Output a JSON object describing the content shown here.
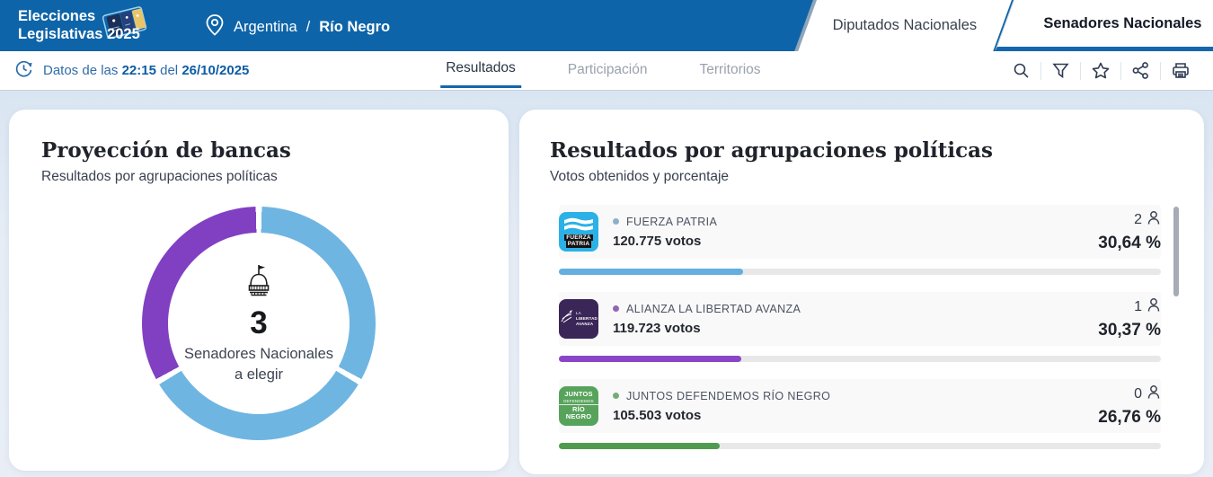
{
  "header": {
    "logo": {
      "line1": "Elecciones",
      "line2": "Legislativas 2025"
    },
    "location": {
      "country": "Argentina",
      "separator": "/",
      "region": "Río Negro"
    },
    "tabs": [
      {
        "label": "Diputados Nacionales",
        "active": false
      },
      {
        "label": "Senadores Nacionales",
        "active": true
      }
    ],
    "brand_color": "#0e64a8",
    "active_tab_underline_color": "#1566ac"
  },
  "subheader": {
    "status": {
      "prefix": "Datos de las",
      "time": "22:15",
      "middle": "del",
      "date": "26/10/2025"
    },
    "tabs": [
      {
        "label": "Resultados",
        "active": true
      },
      {
        "label": "Participación",
        "active": false
      },
      {
        "label": "Territorios",
        "active": false
      }
    ],
    "toolbar_icons": [
      "search-icon",
      "filter-icon",
      "favorite-icon",
      "share-icon",
      "print-icon"
    ]
  },
  "seats_card": {
    "title": "Proyección de bancas",
    "subtitle": "Resultados por agrupaciones políticas",
    "donut": {
      "total_label": "3",
      "caption_line1": "Senadores Nacionales",
      "caption_line2": "a elegir",
      "gap_deg": 3,
      "segments": [
        {
          "party": "FUERZA PATRIA",
          "seats": 2,
          "color": "#6fb5e2"
        },
        {
          "party": "ALIANZA LA LIBERTAD AVANZA",
          "seats": 1,
          "color": "#8140c2"
        }
      ]
    }
  },
  "results_card": {
    "title": "Resultados por agrupaciones políticas",
    "subtitle": "Votos obtenidos y porcentaje",
    "rows": [
      {
        "name": "FUERZA PATRIA",
        "votes": "120.775 votos",
        "seats": "2",
        "percent": "30,64 %",
        "percent_value": 30.64,
        "color": "#63afdf",
        "dot_color": "#7aa3c0",
        "logo": {
          "kind": "fp",
          "bg": "#2bb1e6",
          "lines": [
            "FUERZA",
            "PATRIA"
          ]
        }
      },
      {
        "name": "ALIANZA LA LIBERTAD AVANZA",
        "votes": "119.723 votos",
        "seats": "1",
        "percent": "30,37 %",
        "percent_value": 30.37,
        "color": "#8a46c6",
        "dot_color": "#7c4ea6",
        "logo": {
          "kind": "lla",
          "bg": "#3a2657",
          "lines": [
            "LA",
            "LIBERTAD",
            "AVANZA"
          ]
        }
      },
      {
        "name": "JUNTOS DEFENDEMOS RÍO NEGRO",
        "votes": "105.503 votos",
        "seats": "0",
        "percent": "26,76 %",
        "percent_value": 26.76,
        "color": "#4f9c50",
        "dot_color": "#5f9e62",
        "logo": {
          "kind": "jdrn",
          "bg": "#58a35c",
          "lines": [
            "JUNTOS",
            "DEFENDEMOS",
            "RÍO NEGRO"
          ]
        }
      }
    ]
  }
}
